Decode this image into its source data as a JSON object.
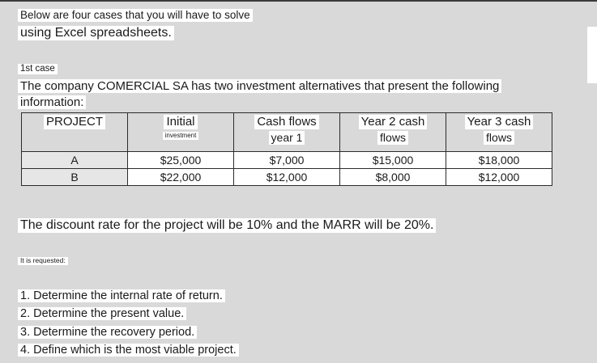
{
  "intro": {
    "line1": "Below are four cases that you will have to solve",
    "line2": "using Excel spreadsheets."
  },
  "case": {
    "label": "1st case",
    "desc_line1": "The company COMERCIAL SA has two investment alternatives that present the following",
    "desc_line2": "information:"
  },
  "table": {
    "headers": {
      "project": "PROJECT",
      "initial_main": "Initial",
      "initial_sub": "investment",
      "y1_main": "Cash flows",
      "y1_sub": "year 1",
      "y2_main": "Year 2 cash",
      "y2_sub": "flows",
      "y3_main": "Year 3 cash",
      "y3_sub": "flows"
    },
    "rows": [
      {
        "project": "A",
        "initial": "$25,000",
        "y1": "$7,000",
        "y2": "$15,000",
        "y3": "$18,000"
      },
      {
        "project": "B",
        "initial": "$22,000",
        "y1": "$12,000",
        "y2": "$8,000",
        "y3": "$12,000"
      }
    ]
  },
  "rate_text": "The discount rate for the project will be 10% and the MARR will be 20%.",
  "requested_label": "It is requested:",
  "requests": [
    "1. Determine the internal rate of return.",
    "2. Determine the present value.",
    "3. Determine the recovery period.",
    "4. Define which is the most viable project."
  ]
}
